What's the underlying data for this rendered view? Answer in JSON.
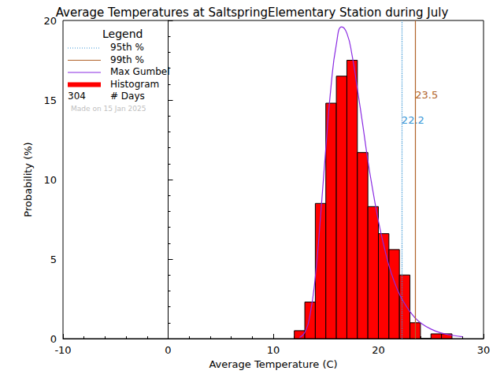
{
  "chart_data": {
    "type": "histogram",
    "title": "Average Temperatures at SaltspringElementary Station during July",
    "x_label": "Average Temperature (C)",
    "y_label": "Probability (%)",
    "xlim": [
      -10,
      30
    ],
    "xticks": [
      -10,
      0,
      10,
      20,
      30
    ],
    "ylim": [
      0,
      20
    ],
    "yticks": [
      0,
      5,
      10,
      15,
      20
    ],
    "legend_title": "Legend",
    "histogram": {
      "name": "Histogram",
      "color": "#ff0000",
      "bins": [
        12,
        13,
        14,
        15,
        16,
        17,
        18,
        19,
        20,
        21,
        22,
        23,
        24,
        25,
        26,
        27
      ],
      "values": [
        0.5,
        2.3,
        8.5,
        14.8,
        16.5,
        17.5,
        11.7,
        8.3,
        6.6,
        5.6,
        4.0,
        1.0,
        0,
        0.3,
        0.3
      ]
    },
    "series": [
      {
        "name": "Max Gumbel",
        "type": "line",
        "color": "#8a2be2",
        "x": [
          12.5,
          13,
          13.5,
          14,
          14.5,
          15,
          15.5,
          16,
          16.5,
          17,
          17.5,
          18,
          18.5,
          19,
          19.5,
          20,
          20.5,
          21,
          21.5,
          22,
          22.5,
          23,
          23.5,
          24,
          25,
          26,
          27,
          28
        ],
        "values": [
          0.07,
          0.4,
          1.5,
          3.9,
          7.7,
          12.0,
          15.9,
          18.5,
          19.6,
          19.2,
          17.8,
          15.7,
          13.5,
          11.2,
          9.2,
          7.4,
          5.9,
          4.6,
          3.6,
          2.8,
          2.2,
          1.7,
          1.3,
          1.0,
          0.6,
          0.35,
          0.21,
          0.12
        ]
      }
    ],
    "percentiles": [
      {
        "name": "95th %",
        "value": 22.2,
        "color": "#3a96d6",
        "line_style": "dotted"
      },
      {
        "name": "99th %",
        "value": 23.5,
        "color": "#b0632a",
        "line_style": "solid"
      }
    ],
    "days": {
      "name": "# Days",
      "value": 304
    },
    "annotation": "Made on 15 Jan 2025"
  }
}
